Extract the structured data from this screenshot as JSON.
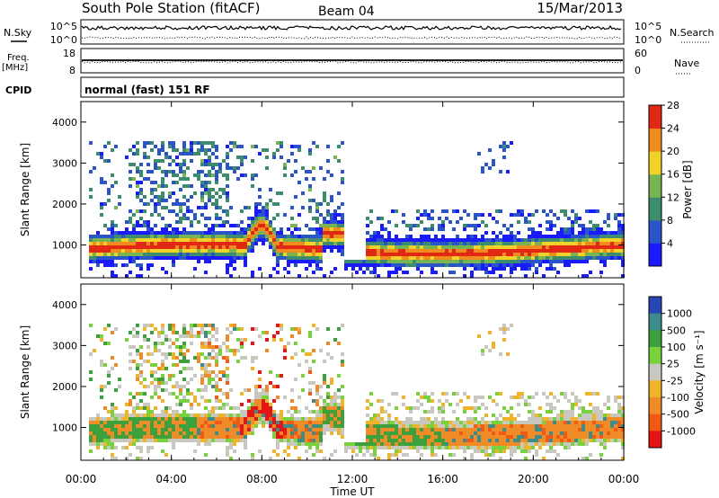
{
  "header": {
    "station": "South Pole Station (fitACF)",
    "beam": "Beam 04",
    "date": "15/Mar/2013"
  },
  "noise_panel": {
    "left_label": "N.Sky",
    "right_label": "N.Search",
    "left_ticks": [
      "10^5",
      "10^0"
    ],
    "right_ticks": [
      "10^5",
      "10^0"
    ]
  },
  "freq_panel": {
    "left_label_line1": "Freq.",
    "left_label_line2": "[MHz]",
    "right_label": "Nave",
    "left_ticks": [
      "18",
      "8"
    ],
    "right_ticks": [
      "60",
      "0"
    ]
  },
  "cpid": {
    "label": "CPID",
    "text": "normal (fast) 151 RF"
  },
  "chart_data": [
    {
      "type": "heatmap",
      "name": "power",
      "ylabel": "Slant Range [km]",
      "ylim": [
        200,
        4500
      ],
      "yticks": [
        "1000",
        "2000",
        "3000",
        "4000"
      ],
      "colorbar": {
        "label": "Power [dB]",
        "ticks": [
          "4",
          "8",
          "12",
          "16",
          "20",
          "24",
          "28"
        ],
        "range": [
          0,
          30
        ],
        "colors": [
          "#1a1aff",
          "#2a55c8",
          "#3c8c6e",
          "#78b450",
          "#f0d228",
          "#f08c1e",
          "#e02814"
        ]
      }
    },
    {
      "type": "heatmap",
      "name": "velocity",
      "ylabel": "Slant Range [km]",
      "ylim": [
        200,
        4500
      ],
      "yticks": [
        "1000",
        "2000",
        "3000",
        "4000"
      ],
      "colorbar": {
        "label": "Velocity [m s⁻¹]",
        "ticks": [
          "1000",
          "500",
          "100",
          "25",
          "-25",
          "-100",
          "-500",
          "-1000"
        ],
        "colors": [
          "#2846b4",
          "#3c8c8c",
          "#3ca03c",
          "#78d23c",
          "#c8c8c0",
          "#f0b428",
          "#f08c28",
          "#f05a14",
          "#e61414"
        ]
      }
    }
  ],
  "x_axis": {
    "label": "Time UT",
    "ticks": [
      "00:00",
      "04:00",
      "08:00",
      "12:00",
      "16:00",
      "20:00",
      "00:00"
    ]
  }
}
